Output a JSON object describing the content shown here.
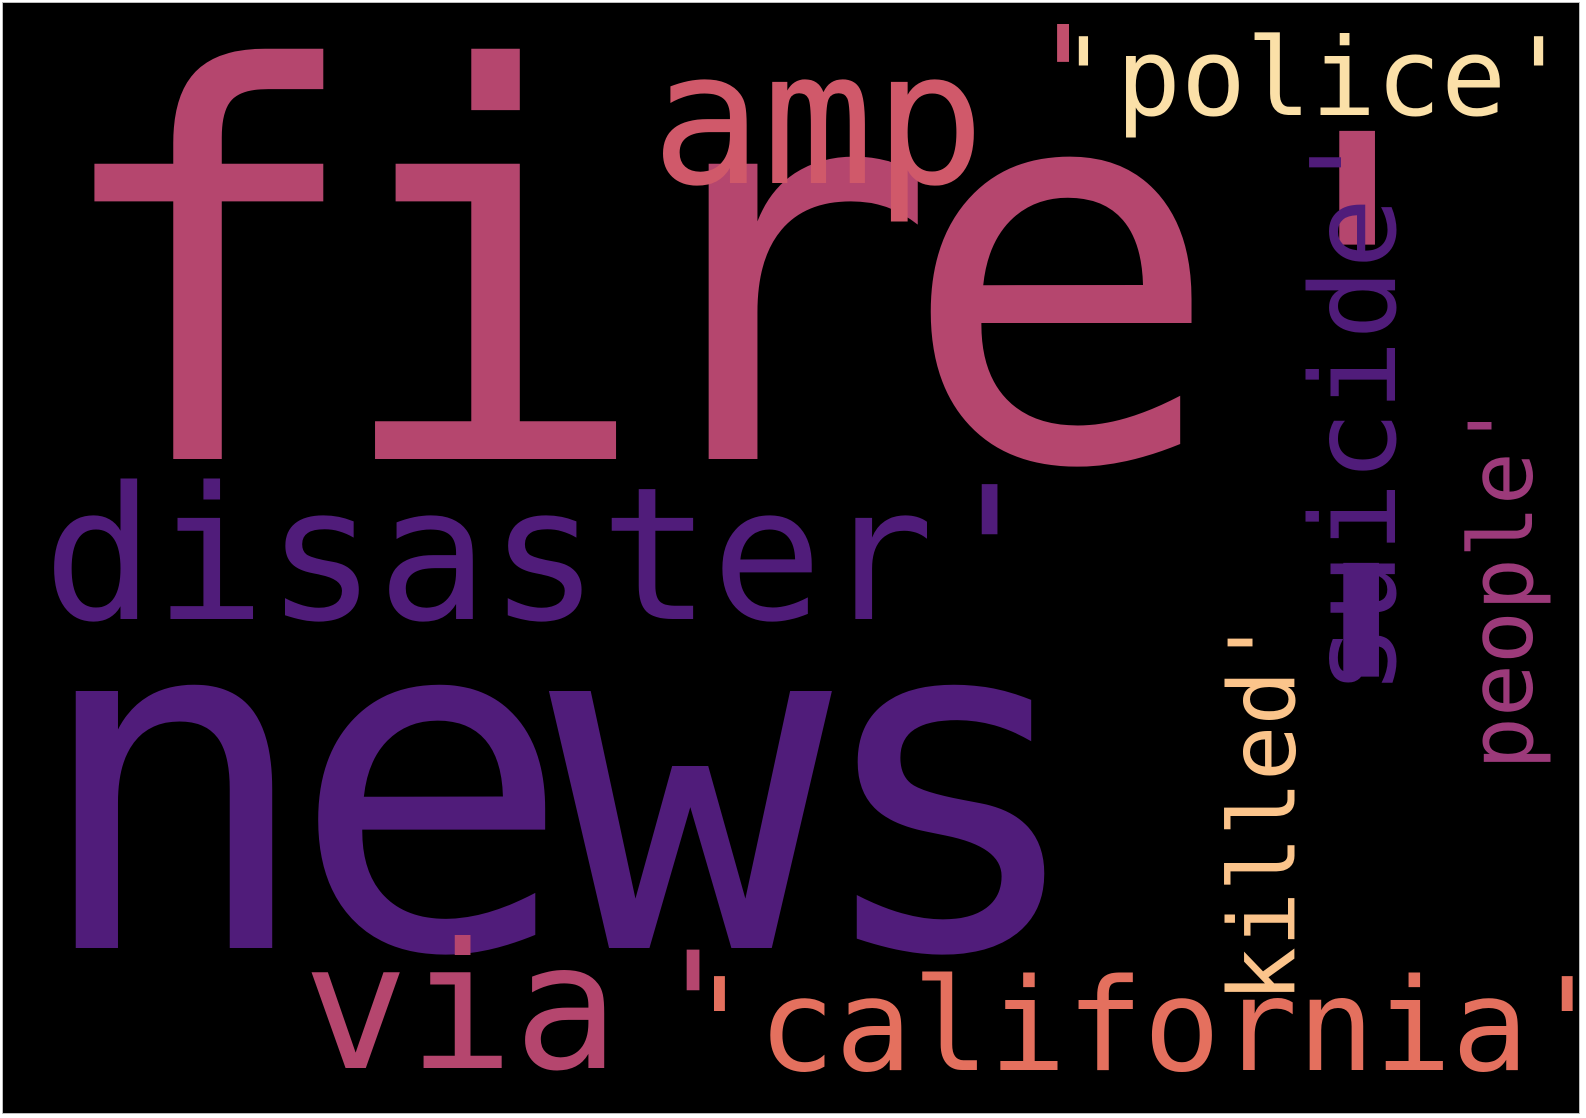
{
  "word_cloud": {
    "words": [
      {
        "key": "fire",
        "text": "fire",
        "color": "#b5466e"
      },
      {
        "key": "news",
        "text": "news",
        "color": "#501c7a"
      },
      {
        "key": "disaster",
        "text": "disaster'",
        "color": "#501c7a"
      },
      {
        "key": "amp",
        "text": "amp",
        "color": "#d0596a"
      },
      {
        "key": "quote_top_left",
        "text": "'",
        "color": "#c24f6c"
      },
      {
        "key": "police",
        "text": "'police'",
        "color": "#fbe0a8"
      },
      {
        "key": "quote_big_top",
        "text": "'",
        "color": "#b5466e"
      },
      {
        "key": "suicide",
        "text": "suicide'",
        "color": "#501c7a"
      },
      {
        "key": "quote_big_mid",
        "text": "'",
        "color": "#501c7a"
      },
      {
        "key": "people",
        "text": "people'",
        "color": "#9c3a7a"
      },
      {
        "key": "killed",
        "text": "killed'",
        "color": "#fbc48b"
      },
      {
        "key": "via",
        "text": "via",
        "color": "#b5466e"
      },
      {
        "key": "quote_via",
        "text": "'",
        "color": "#b5466e"
      },
      {
        "key": "california",
        "text": "'california'",
        "color": "#e4705e"
      }
    ]
  }
}
